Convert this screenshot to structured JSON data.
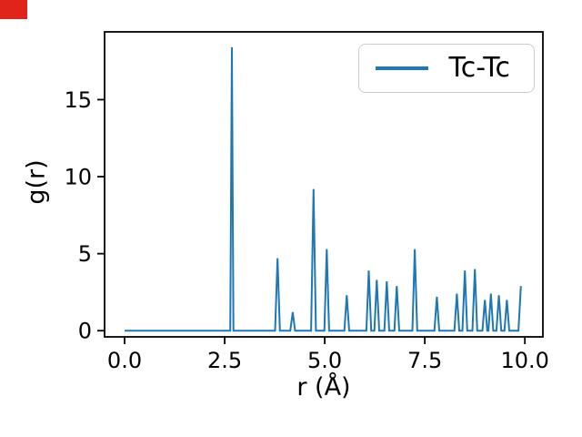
{
  "figure": {
    "background_color": "#ffffff"
  },
  "markers": {
    "top_left_badge_color": "#e0241c"
  },
  "chart_data": {
    "type": "line",
    "title": "",
    "xlabel": "r (Å)",
    "ylabel": "g(r)",
    "xlim": [
      -0.5,
      10.45
    ],
    "ylim": [
      -0.4,
      19.4
    ],
    "xticks": [
      0.0,
      2.5,
      5.0,
      7.5,
      10.0
    ],
    "xtick_labels": [
      "0.0",
      "2.5",
      "5.0",
      "7.5",
      "10.0"
    ],
    "yticks": [
      0,
      5,
      10,
      15
    ],
    "ytick_labels": [
      "0",
      "5",
      "10",
      "15"
    ],
    "grid": false,
    "line_color": "#1f77b4",
    "legend": {
      "position": "upper right",
      "entries": [
        "Tc-Tc"
      ]
    },
    "series": [
      {
        "name": "Tc-Tc",
        "x": [
          0.0,
          2.6,
          2.64,
          2.68,
          2.72,
          2.76,
          3.76,
          3.82,
          3.88,
          4.14,
          4.2,
          4.26,
          4.66,
          4.72,
          4.78,
          4.99,
          5.05,
          5.11,
          5.49,
          5.55,
          5.61,
          6.04,
          6.1,
          6.16,
          6.24,
          6.3,
          6.36,
          6.49,
          6.55,
          6.61,
          6.74,
          6.8,
          6.86,
          7.19,
          7.25,
          7.31,
          7.74,
          7.8,
          7.86,
          8.24,
          8.3,
          8.36,
          8.44,
          8.5,
          8.56,
          8.69,
          8.75,
          8.81,
          8.94,
          9.0,
          9.06,
          9.09,
          9.15,
          9.21,
          9.29,
          9.35,
          9.41,
          9.49,
          9.55,
          9.61,
          9.84,
          9.9
        ],
        "y": [
          0,
          0,
          0,
          18.4,
          0,
          0,
          0,
          4.7,
          0,
          0,
          1.2,
          0,
          0,
          9.2,
          0,
          0,
          5.3,
          0,
          0,
          2.3,
          0,
          0,
          3.9,
          0,
          0,
          3.3,
          0,
          0,
          3.2,
          0,
          0,
          2.9,
          0,
          0,
          5.3,
          0,
          0,
          2.2,
          0,
          0,
          2.4,
          0,
          0,
          3.9,
          0,
          0,
          4.0,
          0,
          0,
          2.0,
          0,
          0,
          2.4,
          0,
          0,
          2.3,
          0,
          0,
          2.0,
          0,
          0,
          2.9
        ]
      }
    ]
  }
}
